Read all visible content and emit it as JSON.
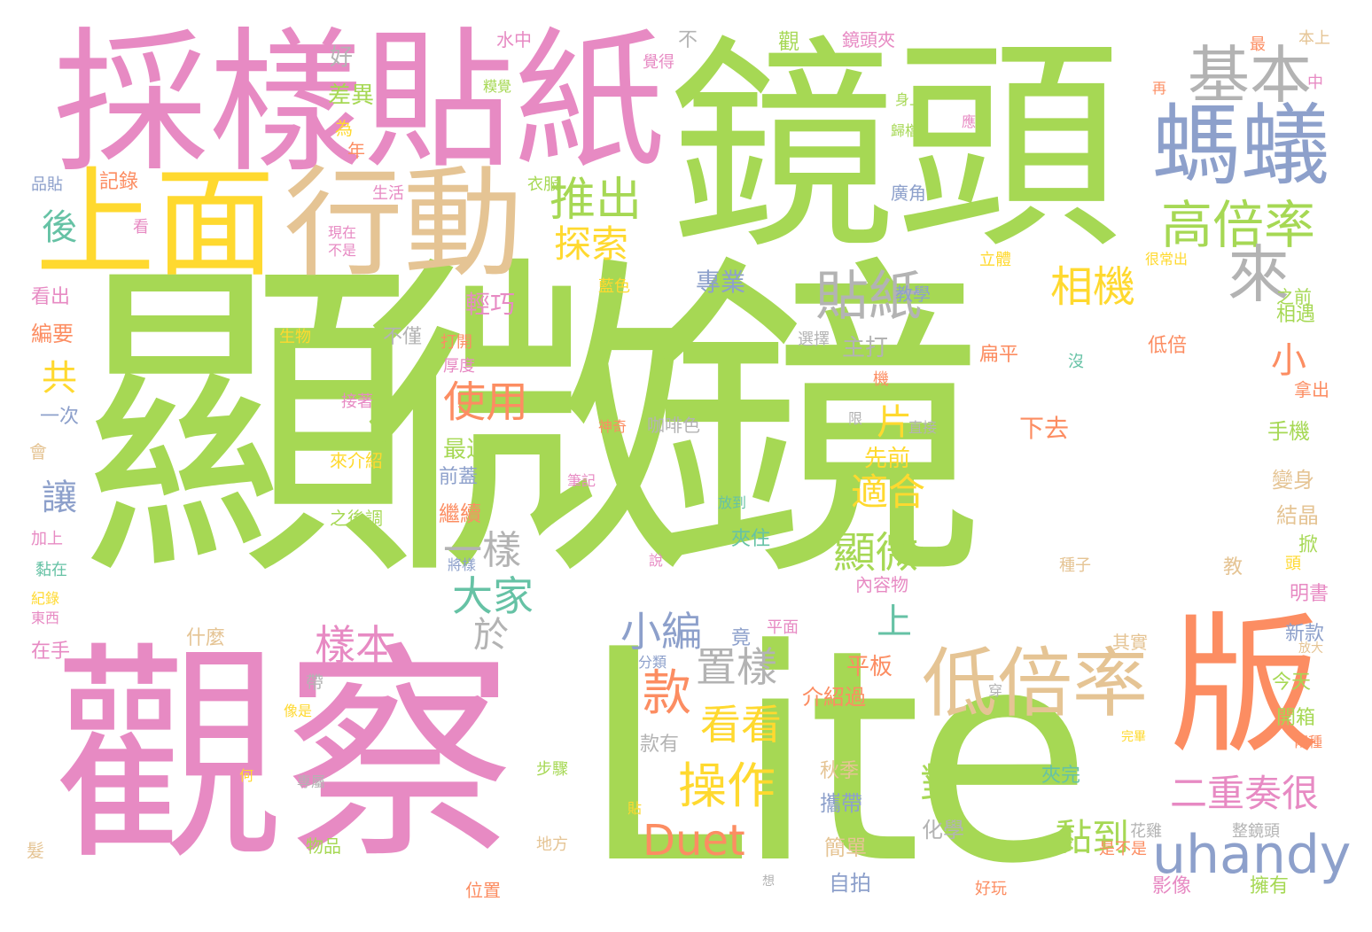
{
  "palette": {
    "green": "#a6d854",
    "pink": "#e78ac3",
    "yellow": "#ffd92f",
    "tan": "#e5c494",
    "orange": "#fc8d62",
    "blue": "#8da0cb",
    "teal": "#66c2a5",
    "gray": "#b3b3b3"
  },
  "words": [
    {
      "text": "顯微鏡",
      "color": "green"
    },
    {
      "text": "Lite",
      "color": "green"
    },
    {
      "text": "觀察",
      "color": "pink"
    },
    {
      "text": "鏡頭",
      "color": "green"
    },
    {
      "text": "採樣",
      "color": "pink"
    },
    {
      "text": "貼紙",
      "color": "pink"
    },
    {
      "text": "上面",
      "color": "yellow"
    },
    {
      "text": "行動",
      "color": "tan"
    },
    {
      "text": "版",
      "color": "orange"
    },
    {
      "text": "螞蟻",
      "color": "blue"
    },
    {
      "text": "基本",
      "color": "gray"
    },
    {
      "text": "高倍率",
      "color": "green"
    },
    {
      "text": "推出",
      "color": "green"
    },
    {
      "text": "探索",
      "color": "yellow"
    },
    {
      "text": "來",
      "color": "gray"
    },
    {
      "text": "貼紙",
      "color": "gray"
    },
    {
      "text": "相機",
      "color": "yellow"
    },
    {
      "text": "低倍率",
      "color": "tan"
    },
    {
      "text": "uhandy",
      "color": "blue"
    },
    {
      "text": "Duet",
      "color": "orange"
    },
    {
      "text": "操作",
      "color": "yellow"
    },
    {
      "text": "看看",
      "color": "yellow"
    },
    {
      "text": "款",
      "color": "orange"
    },
    {
      "text": "置樣",
      "color": "gray"
    },
    {
      "text": "樣本",
      "color": "pink"
    },
    {
      "text": "小編",
      "color": "blue"
    },
    {
      "text": "大家",
      "color": "teal"
    },
    {
      "text": "顯微",
      "color": "green"
    },
    {
      "text": "適合",
      "color": "yellow"
    },
    {
      "text": "使用",
      "color": "orange"
    },
    {
      "text": "二重奏很",
      "color": "pink"
    },
    {
      "text": "黏到",
      "color": "green"
    },
    {
      "text": "後",
      "color": "teal"
    },
    {
      "text": "共",
      "color": "yellow"
    },
    {
      "text": "讓",
      "color": "blue"
    },
    {
      "text": "一樣",
      "color": "gray"
    },
    {
      "text": "對",
      "color": "green"
    },
    {
      "text": "小",
      "color": "orange"
    },
    {
      "text": "片",
      "color": "yellow"
    },
    {
      "text": "上",
      "color": "teal"
    },
    {
      "text": "於",
      "color": "gray"
    },
    {
      "text": "最近",
      "color": "green"
    },
    {
      "text": "前蓋",
      "color": "blue"
    },
    {
      "text": "繼續",
      "color": "orange"
    },
    {
      "text": "先前",
      "color": "yellow"
    },
    {
      "text": "下去",
      "color": "orange"
    },
    {
      "text": "主打",
      "color": "gray"
    },
    {
      "text": "輕巧",
      "color": "pink"
    },
    {
      "text": "專業",
      "color": "blue"
    },
    {
      "text": "差異",
      "color": "green"
    },
    {
      "text": "記錄",
      "color": "orange"
    },
    {
      "text": "好",
      "color": "gray"
    },
    {
      "text": "為",
      "color": "yellow"
    },
    {
      "text": "年",
      "color": "orange"
    },
    {
      "text": "看出",
      "color": "pink"
    },
    {
      "text": "編要",
      "color": "orange"
    },
    {
      "text": "一次",
      "color": "blue"
    },
    {
      "text": "不僅",
      "color": "gray"
    },
    {
      "text": "什麼",
      "color": "tan"
    },
    {
      "text": "在手",
      "color": "pink"
    },
    {
      "text": "介紹過",
      "color": "orange"
    },
    {
      "text": "平板",
      "color": "orange"
    },
    {
      "text": "款有",
      "color": "gray"
    },
    {
      "text": "秋季",
      "color": "tan"
    },
    {
      "text": "攜帶",
      "color": "blue"
    },
    {
      "text": "簡單",
      "color": "tan"
    },
    {
      "text": "自拍",
      "color": "blue"
    },
    {
      "text": "化學",
      "color": "gray"
    },
    {
      "text": "影像",
      "color": "pink"
    },
    {
      "text": "擁有",
      "color": "green"
    },
    {
      "text": "夾完",
      "color": "teal"
    },
    {
      "text": "夾住",
      "color": "teal"
    },
    {
      "text": "手機",
      "color": "green"
    },
    {
      "text": "變身",
      "color": "tan"
    },
    {
      "text": "結晶",
      "color": "tan"
    },
    {
      "text": "明書",
      "color": "pink"
    },
    {
      "text": "新款",
      "color": "blue"
    },
    {
      "text": "今天",
      "color": "green"
    },
    {
      "text": "開箱",
      "color": "green"
    },
    {
      "text": "相遇",
      "color": "green"
    },
    {
      "text": "之前",
      "color": "green"
    },
    {
      "text": "低倍",
      "color": "orange"
    },
    {
      "text": "扁平",
      "color": "orange"
    },
    {
      "text": "廣角",
      "color": "blue"
    },
    {
      "text": "教學",
      "color": "blue"
    },
    {
      "text": "鏡頭夾",
      "color": "pink"
    },
    {
      "text": "本上",
      "color": "tan"
    },
    {
      "text": "水中",
      "color": "pink"
    },
    {
      "text": "咖啡色",
      "color": "gray"
    },
    {
      "text": "來介紹",
      "color": "yellow"
    },
    {
      "text": "之後調",
      "color": "green"
    },
    {
      "text": "接著",
      "color": "pink"
    },
    {
      "text": "位置",
      "color": "orange"
    },
    {
      "text": "物品",
      "color": "green"
    },
    {
      "text": "地方",
      "color": "tan"
    },
    {
      "text": "生物",
      "color": "yellow"
    },
    {
      "text": "藍色",
      "color": "yellow"
    },
    {
      "text": "步驟",
      "color": "green"
    },
    {
      "text": "其實",
      "color": "tan"
    },
    {
      "text": "選擇",
      "color": "gray"
    },
    {
      "text": "拿出",
      "color": "orange"
    },
    {
      "text": "內容物",
      "color": "pink"
    },
    {
      "text": "整鏡頭",
      "color": "gray"
    },
    {
      "text": "好玩",
      "color": "orange"
    },
    {
      "text": "花雞",
      "color": "gray"
    },
    {
      "text": "種子",
      "color": "tan"
    },
    {
      "text": "是不是",
      "color": "orange"
    },
    {
      "text": "直接",
      "color": "gray"
    },
    {
      "text": "放到",
      "color": "teal"
    },
    {
      "text": "神奇",
      "color": "orange"
    },
    {
      "text": "筆記",
      "color": "pink"
    },
    {
      "text": "將樣",
      "color": "blue"
    },
    {
      "text": "打開",
      "color": "orange"
    },
    {
      "text": "厚度",
      "color": "pink"
    },
    {
      "text": "立體",
      "color": "yellow"
    },
    {
      "text": "很常出",
      "color": "yellow"
    },
    {
      "text": "覺得",
      "color": "pink"
    },
    {
      "text": "觀",
      "color": "green"
    },
    {
      "text": "不",
      "color": "gray"
    },
    {
      "text": "最",
      "color": "orange"
    },
    {
      "text": "中",
      "color": "pink"
    },
    {
      "text": "再",
      "color": "orange"
    },
    {
      "text": "應",
      "color": "pink"
    },
    {
      "text": "身上",
      "color": "green"
    },
    {
      "text": "歸檔",
      "color": "green"
    },
    {
      "text": "衣服",
      "color": "green"
    },
    {
      "text": "生活",
      "color": "pink"
    },
    {
      "text": "看",
      "color": "pink"
    },
    {
      "text": "品貼",
      "color": "blue"
    },
    {
      "text": "現在",
      "color": "pink"
    },
    {
      "text": "不是",
      "color": "pink"
    },
    {
      "text": "糢覺",
      "color": "green"
    },
    {
      "text": "機",
      "color": "orange"
    },
    {
      "text": "限",
      "color": "gray"
    },
    {
      "text": "沒",
      "color": "teal"
    },
    {
      "text": "竟",
      "color": "blue"
    },
    {
      "text": "平面",
      "color": "pink"
    },
    {
      "text": "分類",
      "color": "blue"
    },
    {
      "text": "帶",
      "color": "gray"
    },
    {
      "text": "穿",
      "color": "gray"
    },
    {
      "text": "像是",
      "color": "yellow"
    },
    {
      "text": "完畢",
      "color": "yellow"
    },
    {
      "text": "兩種",
      "color": "orange"
    },
    {
      "text": "放大",
      "color": "tan"
    },
    {
      "text": "掀",
      "color": "green"
    },
    {
      "text": "頭",
      "color": "yellow"
    },
    {
      "text": "教",
      "color": "tan"
    },
    {
      "text": "說",
      "color": "pink"
    },
    {
      "text": "貼",
      "color": "yellow"
    },
    {
      "text": "想",
      "color": "gray"
    },
    {
      "text": "專屬",
      "color": "gray"
    },
    {
      "text": "何",
      "color": "yellow"
    },
    {
      "text": "會",
      "color": "tan"
    },
    {
      "text": "加上",
      "color": "pink"
    },
    {
      "text": "黏在",
      "color": "teal"
    },
    {
      "text": "紀錄",
      "color": "yellow"
    },
    {
      "text": "東西",
      "color": "pink"
    },
    {
      "text": "髮",
      "color": "tan"
    }
  ]
}
